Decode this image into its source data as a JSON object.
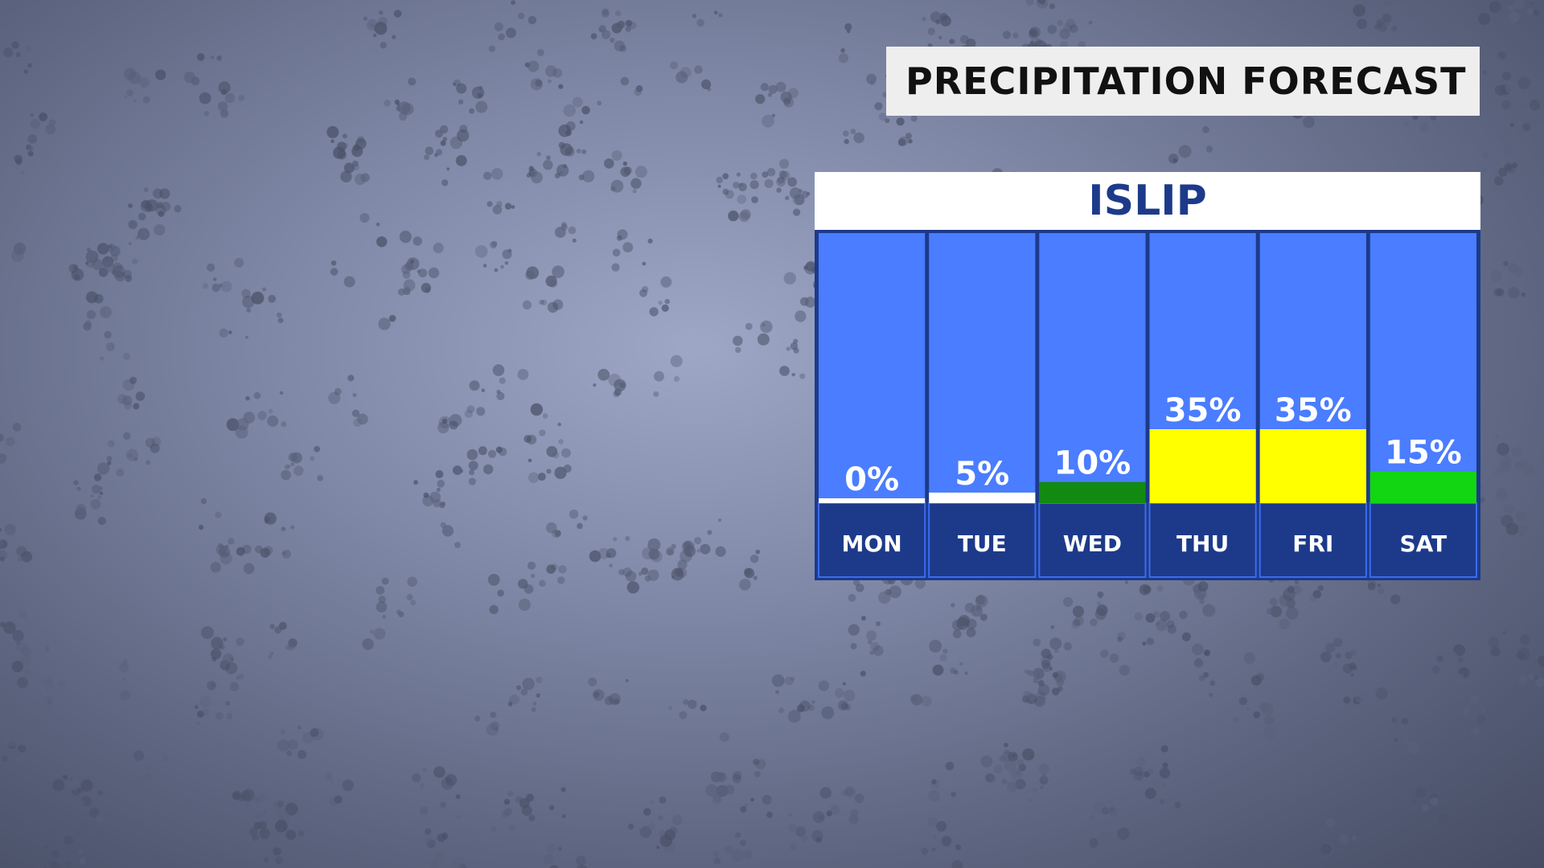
{
  "title": "PRECIPITATION FORECAST",
  "location": "ISLIP",
  "colors": {
    "column_bg": "#4a7dff",
    "footer_bg": "#1d3a8a",
    "title_bg": "#eeeeef",
    "title_text": "#111111",
    "location_text": "#1d3a8a",
    "day_text": "#ffffff",
    "value_text": "#ffffff"
  },
  "chart_data": {
    "type": "bar",
    "categories": [
      "MON",
      "TUE",
      "WED",
      "THU",
      "FRI",
      "SAT"
    ],
    "values": [
      0,
      5,
      10,
      35,
      35,
      15
    ],
    "value_labels": [
      "0%",
      "5%",
      "10%",
      "35%",
      "35%",
      "15%"
    ],
    "bar_colors": [
      "#ffffff",
      "#ffffff",
      "#128a12",
      "#ffff00",
      "#ffff00",
      "#12d612"
    ],
    "unit": "%",
    "ylim": [
      0,
      100
    ],
    "grid": false
  }
}
